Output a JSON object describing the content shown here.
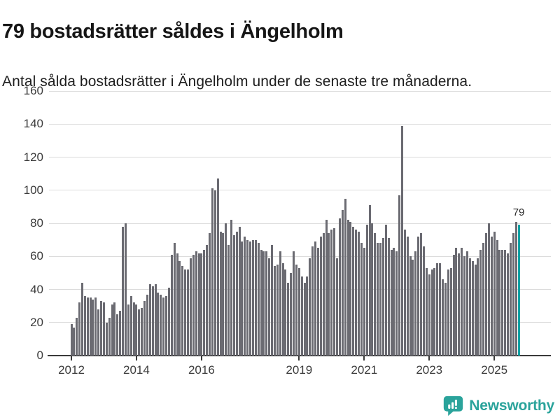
{
  "header": {
    "title": "79 bostadsrätter såldes i Ängelholm",
    "subtitle": "Antal sålda bostadsrätter i Ängelholm under de senaste tre månaderna."
  },
  "footer": {
    "brand_name": "Newsworthy"
  },
  "colors": {
    "background": "#ffffff",
    "title_text": "#161616",
    "subtitle_text": "#1d1d1d",
    "axis_text": "#3c3c3c",
    "gridline": "#dcdcdc",
    "axis_line": "#3a3a3a",
    "bar": "#6b6b72",
    "highlight": "#12a2a5",
    "logo": "#2aa39b"
  },
  "chart_data": {
    "type": "bar",
    "title": "79 bostadsrätter såldes i Ängelholm",
    "subtitle": "Antal sålda bostadsrätter i Ängelholm under de senaste tre månaderna.",
    "x_unit": "month",
    "x_start": "2012-01",
    "x_end": "2025-10",
    "ylim": [
      0,
      160
    ],
    "y_ticks": [
      0,
      20,
      40,
      60,
      80,
      100,
      120,
      140,
      160
    ],
    "grid": true,
    "x_ticks": [
      {
        "label": "2012",
        "month_index": 0
      },
      {
        "label": "2014",
        "month_index": 24
      },
      {
        "label": "2016",
        "month_index": 48
      },
      {
        "label": "2019",
        "month_index": 84
      },
      {
        "label": "2021",
        "month_index": 108
      },
      {
        "label": "2023",
        "month_index": 132
      },
      {
        "label": "2025",
        "month_index": 156
      }
    ],
    "values": [
      19,
      17,
      23,
      32,
      44,
      36,
      35,
      35,
      34,
      35,
      28,
      33,
      32,
      20,
      23,
      31,
      32,
      25,
      27,
      78,
      80,
      31,
      36,
      32,
      31,
      28,
      29,
      33,
      37,
      43,
      42,
      43,
      38,
      37,
      35,
      36,
      41,
      61,
      68,
      62,
      57,
      54,
      52,
      52,
      59,
      61,
      63,
      62,
      62,
      64,
      67,
      74,
      101,
      100,
      107,
      75,
      74,
      80,
      67,
      82,
      73,
      75,
      78,
      69,
      72,
      70,
      69,
      70,
      70,
      68,
      64,
      63,
      63,
      59,
      67,
      54,
      55,
      63,
      56,
      52,
      44,
      50,
      63,
      55,
      53,
      48,
      44,
      48,
      59,
      66,
      69,
      65,
      72,
      74,
      82,
      74,
      76,
      77,
      59,
      83,
      88,
      95,
      82,
      81,
      78,
      76,
      75,
      68,
      65,
      79,
      91,
      80,
      74,
      68,
      68,
      71,
      79,
      71,
      64,
      65,
      63,
      97,
      139,
      76,
      72,
      60,
      58,
      63,
      72,
      74,
      66,
      53,
      49,
      52,
      53,
      56,
      56,
      46,
      44,
      52,
      53,
      61,
      65,
      62,
      65,
      60,
      63,
      59,
      57,
      55,
      59,
      64,
      68,
      74,
      80,
      72,
      75,
      70,
      64,
      64,
      64,
      62,
      68,
      74,
      81,
      79
    ],
    "highlight_last_bar": true,
    "last_value_label": "79"
  }
}
